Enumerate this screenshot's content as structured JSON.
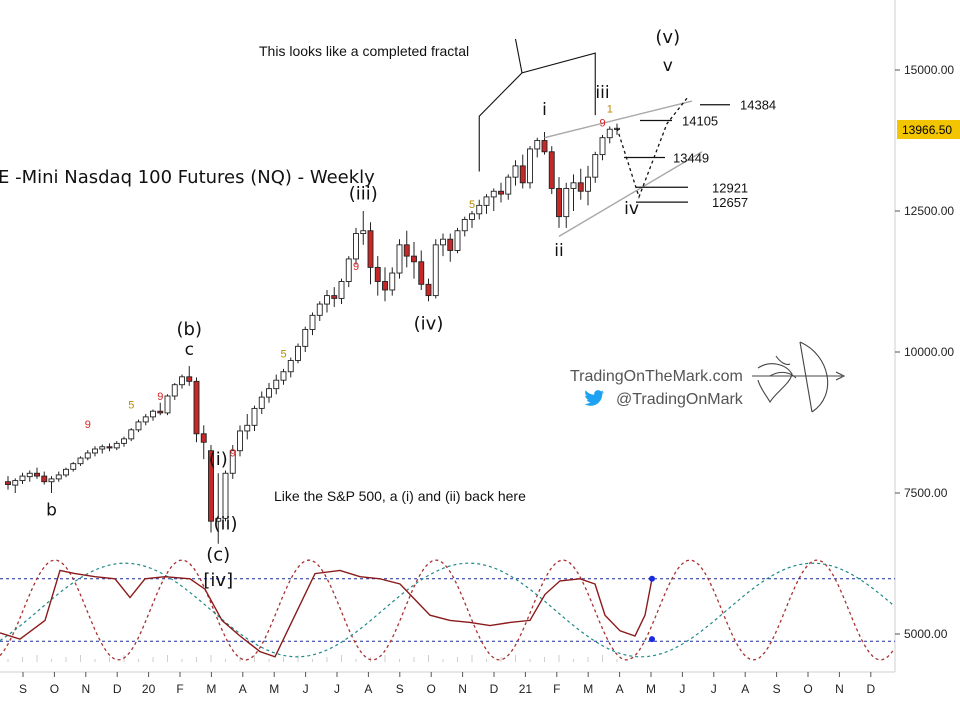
{
  "chart_data": {
    "type": "candlestick",
    "title": "E -Mini Nasdaq 100 Futures (NQ) - Weekly",
    "price_axis": {
      "ticks": [
        "15000.00",
        "12500.00",
        "10000.00",
        "7500.00",
        "5000.00"
      ],
      "tick_values": [
        15000,
        12500,
        10000,
        7500,
        5000
      ],
      "last_price": "13966.50",
      "last_price_color": "#f2c500"
    },
    "time_axis": {
      "ticks": [
        "S",
        "O",
        "N",
        "D",
        "20",
        "F",
        "M",
        "A",
        "M",
        "J",
        "J",
        "A",
        "S",
        "O",
        "N",
        "D",
        "21",
        "F",
        "M",
        "A",
        "M",
        "J",
        "J",
        "A",
        "S",
        "O",
        "N",
        "D"
      ]
    },
    "candles": [
      {
        "o": 7700,
        "h": 7800,
        "l": 7560,
        "c": 7650
      },
      {
        "o": 7640,
        "h": 7760,
        "l": 7500,
        "c": 7720
      },
      {
        "o": 7720,
        "h": 7860,
        "l": 7660,
        "c": 7800
      },
      {
        "o": 7790,
        "h": 7900,
        "l": 7700,
        "c": 7850
      },
      {
        "o": 7850,
        "h": 7950,
        "l": 7750,
        "c": 7800
      },
      {
        "o": 7800,
        "h": 7880,
        "l": 7650,
        "c": 7700
      },
      {
        "o": 7700,
        "h": 7800,
        "l": 7500,
        "c": 7750
      },
      {
        "o": 7750,
        "h": 7880,
        "l": 7700,
        "c": 7820
      },
      {
        "o": 7820,
        "h": 7950,
        "l": 7780,
        "c": 7920
      },
      {
        "o": 7920,
        "h": 8050,
        "l": 7880,
        "c": 8020
      },
      {
        "o": 8020,
        "h": 8150,
        "l": 7980,
        "c": 8120
      },
      {
        "o": 8120,
        "h": 8260,
        "l": 8080,
        "c": 8210
      },
      {
        "o": 8210,
        "h": 8330,
        "l": 8150,
        "c": 8280
      },
      {
        "o": 8280,
        "h": 8360,
        "l": 8200,
        "c": 8320
      },
      {
        "o": 8320,
        "h": 8380,
        "l": 8240,
        "c": 8300
      },
      {
        "o": 8300,
        "h": 8420,
        "l": 8260,
        "c": 8380
      },
      {
        "o": 8380,
        "h": 8500,
        "l": 8320,
        "c": 8460
      },
      {
        "o": 8460,
        "h": 8650,
        "l": 8420,
        "c": 8620
      },
      {
        "o": 8620,
        "h": 8800,
        "l": 8580,
        "c": 8760
      },
      {
        "o": 8760,
        "h": 8900,
        "l": 8700,
        "c": 8850
      },
      {
        "o": 8850,
        "h": 8980,
        "l": 8780,
        "c": 8950
      },
      {
        "o": 8950,
        "h": 9100,
        "l": 8880,
        "c": 8920
      },
      {
        "o": 8920,
        "h": 9250,
        "l": 8880,
        "c": 9220
      },
      {
        "o": 9220,
        "h": 9450,
        "l": 9150,
        "c": 9420
      },
      {
        "o": 9420,
        "h": 9600,
        "l": 9350,
        "c": 9560
      },
      {
        "o": 9560,
        "h": 9750,
        "l": 9400,
        "c": 9480
      },
      {
        "o": 9480,
        "h": 9550,
        "l": 8400,
        "c": 8550
      },
      {
        "o": 8550,
        "h": 8700,
        "l": 8100,
        "c": 8400
      },
      {
        "o": 8250,
        "h": 8350,
        "l": 6800,
        "c": 7000
      },
      {
        "o": 7000,
        "h": 7850,
        "l": 6600,
        "c": 7050
      },
      {
        "o": 7050,
        "h": 7900,
        "l": 7000,
        "c": 7850
      },
      {
        "o": 7850,
        "h": 8350,
        "l": 7750,
        "c": 8250
      },
      {
        "o": 8250,
        "h": 8700,
        "l": 8150,
        "c": 8600
      },
      {
        "o": 8600,
        "h": 8900,
        "l": 8450,
        "c": 8700
      },
      {
        "o": 8700,
        "h": 9050,
        "l": 8600,
        "c": 9000
      },
      {
        "o": 9000,
        "h": 9300,
        "l": 8900,
        "c": 9200
      },
      {
        "o": 9200,
        "h": 9450,
        "l": 9100,
        "c": 9350
      },
      {
        "o": 9350,
        "h": 9600,
        "l": 9250,
        "c": 9500
      },
      {
        "o": 9500,
        "h": 9700,
        "l": 9420,
        "c": 9650
      },
      {
        "o": 9650,
        "h": 9900,
        "l": 9550,
        "c": 9850
      },
      {
        "o": 9850,
        "h": 10150,
        "l": 9800,
        "c": 10100
      },
      {
        "o": 10100,
        "h": 10450,
        "l": 10000,
        "c": 10400
      },
      {
        "o": 10400,
        "h": 10700,
        "l": 10300,
        "c": 10650
      },
      {
        "o": 10650,
        "h": 10900,
        "l": 10550,
        "c": 10850
      },
      {
        "o": 10850,
        "h": 11100,
        "l": 10700,
        "c": 11000
      },
      {
        "o": 11000,
        "h": 11150,
        "l": 10800,
        "c": 10950
      },
      {
        "o": 10950,
        "h": 11300,
        "l": 10850,
        "c": 11250
      },
      {
        "o": 11250,
        "h": 11700,
        "l": 11150,
        "c": 11650
      },
      {
        "o": 11650,
        "h": 12200,
        "l": 11550,
        "c": 12100
      },
      {
        "o": 12100,
        "h": 12500,
        "l": 11900,
        "c": 12150
      },
      {
        "o": 12150,
        "h": 12300,
        "l": 11200,
        "c": 11500
      },
      {
        "o": 11500,
        "h": 11700,
        "l": 11000,
        "c": 11250
      },
      {
        "o": 11250,
        "h": 11500,
        "l": 10900,
        "c": 11100
      },
      {
        "o": 11100,
        "h": 11500,
        "l": 11000,
        "c": 11400
      },
      {
        "o": 11400,
        "h": 12000,
        "l": 11300,
        "c": 11900
      },
      {
        "o": 11900,
        "h": 12150,
        "l": 11500,
        "c": 11700
      },
      {
        "o": 11700,
        "h": 11950,
        "l": 11300,
        "c": 11600
      },
      {
        "o": 11600,
        "h": 11800,
        "l": 11100,
        "c": 11200
      },
      {
        "o": 11200,
        "h": 11300,
        "l": 10900,
        "c": 11000
      },
      {
        "o": 11000,
        "h": 12000,
        "l": 10950,
        "c": 11900
      },
      {
        "o": 11900,
        "h": 12100,
        "l": 11700,
        "c": 12000
      },
      {
        "o": 12000,
        "h": 12100,
        "l": 11600,
        "c": 11800
      },
      {
        "o": 11800,
        "h": 12200,
        "l": 11750,
        "c": 12150
      },
      {
        "o": 12150,
        "h": 12400,
        "l": 12050,
        "c": 12350
      },
      {
        "o": 12350,
        "h": 12500,
        "l": 12200,
        "c": 12450
      },
      {
        "o": 12450,
        "h": 12700,
        "l": 12350,
        "c": 12600
      },
      {
        "o": 12600,
        "h": 12800,
        "l": 12450,
        "c": 12750
      },
      {
        "o": 12750,
        "h": 12900,
        "l": 12500,
        "c": 12850
      },
      {
        "o": 12850,
        "h": 13000,
        "l": 12650,
        "c": 12800
      },
      {
        "o": 12800,
        "h": 13150,
        "l": 12700,
        "c": 13100
      },
      {
        "o": 13100,
        "h": 13400,
        "l": 12950,
        "c": 13300
      },
      {
        "o": 13300,
        "h": 13500,
        "l": 12900,
        "c": 13000
      },
      {
        "o": 13000,
        "h": 13650,
        "l": 12900,
        "c": 13600
      },
      {
        "o": 13600,
        "h": 13800,
        "l": 13450,
        "c": 13750
      },
      {
        "o": 13750,
        "h": 13900,
        "l": 13500,
        "c": 13550
      },
      {
        "o": 13550,
        "h": 13650,
        "l": 12800,
        "c": 12900
      },
      {
        "o": 12900,
        "h": 13100,
        "l": 12200,
        "c": 12400
      },
      {
        "o": 12400,
        "h": 13000,
        "l": 12200,
        "c": 12900
      },
      {
        "o": 12900,
        "h": 13150,
        "l": 12500,
        "c": 13000
      },
      {
        "o": 13000,
        "h": 13250,
        "l": 12700,
        "c": 12850
      },
      {
        "o": 12850,
        "h": 13300,
        "l": 12600,
        "c": 13100
      },
      {
        "o": 13100,
        "h": 13550,
        "l": 13000,
        "c": 13500
      },
      {
        "o": 13500,
        "h": 13850,
        "l": 13400,
        "c": 13800
      },
      {
        "o": 13800,
        "h": 14000,
        "l": 13700,
        "c": 13950
      },
      {
        "o": 13950,
        "h": 14050,
        "l": 13850,
        "c": 13966.5
      }
    ],
    "sequence_counts": [
      {
        "text": "9",
        "color": "red",
        "candle": 11,
        "price": 8650
      },
      {
        "text": "5",
        "color": "gold",
        "candle": 17,
        "price": 9000
      },
      {
        "text": "9",
        "color": "red",
        "candle": 21,
        "price": 9150
      },
      {
        "text": "9",
        "color": "red",
        "candle": 31,
        "price": 8150
      },
      {
        "text": "5",
        "color": "gold",
        "candle": 38,
        "price": 9900
      },
      {
        "text": "9",
        "color": "red",
        "candle": 48,
        "price": 11450
      },
      {
        "text": "5",
        "color": "gold",
        "candle": 64,
        "price": 12550
      },
      {
        "text": "9",
        "color": "red",
        "candle": 82,
        "price": 14000
      },
      {
        "text": "1",
        "color": "gold",
        "candle": 83,
        "price": 14250
      }
    ],
    "wave_labels": [
      {
        "text": "b",
        "candle": 6,
        "price": 7100
      },
      {
        "text": "(b)",
        "candle": 25,
        "price": 10300
      },
      {
        "text": "c",
        "candle": 25,
        "price": 9950
      },
      {
        "text": "(i)",
        "candle": 29,
        "price": 8000
      },
      {
        "text": "(ii)",
        "candle": 30,
        "price": 6850
      },
      {
        "text": "(c)",
        "candle": 29,
        "price": 6300
      },
      {
        "text": "[iv]",
        "candle": 29,
        "price": 5850
      },
      {
        "text": "(iii)",
        "candle": 49,
        "price": 12700
      },
      {
        "text": "(iv)",
        "candle": 58,
        "price": 10400
      },
      {
        "text": "i",
        "candle": 74,
        "price": 14200
      },
      {
        "text": "ii",
        "candle": 76,
        "price": 11700
      },
      {
        "text": "iii",
        "candle": 82,
        "price": 14500
      },
      {
        "text": "iv",
        "candle": 86,
        "price": 12450
      },
      {
        "text": "(v)",
        "candle": 91,
        "price": 15480
      },
      {
        "text": "v",
        "candle": 91,
        "price": 14980
      }
    ],
    "levels": [
      {
        "value": "14384",
        "price": 14384
      },
      {
        "value": "14105",
        "price": 14105
      },
      {
        "value": "13449",
        "price": 13449
      },
      {
        "value": "12921",
        "price": 12921
      },
      {
        "value": "12657",
        "price": 12657
      }
    ],
    "annotations": {
      "fractal": "This looks like a completed fractal",
      "note": "Like the S&P 500, a (i) and (ii) back here"
    },
    "branding": {
      "site": "TradingOnTheMark.com",
      "twitter": "@TradingOnMark"
    },
    "oscillator": {
      "range": [
        0,
        100
      ],
      "upper_band": 80,
      "lower_band": 20,
      "series": [
        {
          "color": "#8b1a1a",
          "style": "solid"
        },
        {
          "color": "#a83232",
          "style": "dashed"
        },
        {
          "color": "#1f8a8a",
          "style": "dashed"
        }
      ]
    },
    "colors": {
      "up": "#ffffff",
      "down": "#c62828",
      "outline": "#222222",
      "channel": "#a8a8a8"
    }
  }
}
